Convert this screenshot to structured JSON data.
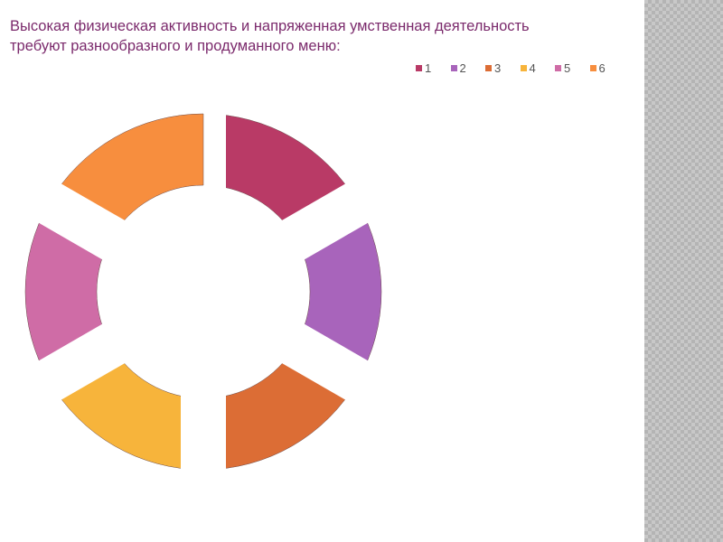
{
  "title_lines": [
    "Высокая физическая активность и напряженная умственная деятельность",
    "требуют разнообразного и продуманного меню:"
  ],
  "chart_data": {
    "type": "doughnut",
    "title": "Высокая физическая активность и напряженная умственная деятельность требуют разнообразного и продуманного меню:",
    "categories": [
      "1",
      "2",
      "3",
      "4",
      "5",
      "6"
    ],
    "values": [
      1,
      1,
      1,
      1,
      1,
      1
    ],
    "colors": [
      "#b93a66",
      "#a864bb",
      "#dc6d35",
      "#f7b43b",
      "#cf6ca6",
      "#f78e3e"
    ],
    "exploded": true,
    "legend_position": "top-right"
  }
}
